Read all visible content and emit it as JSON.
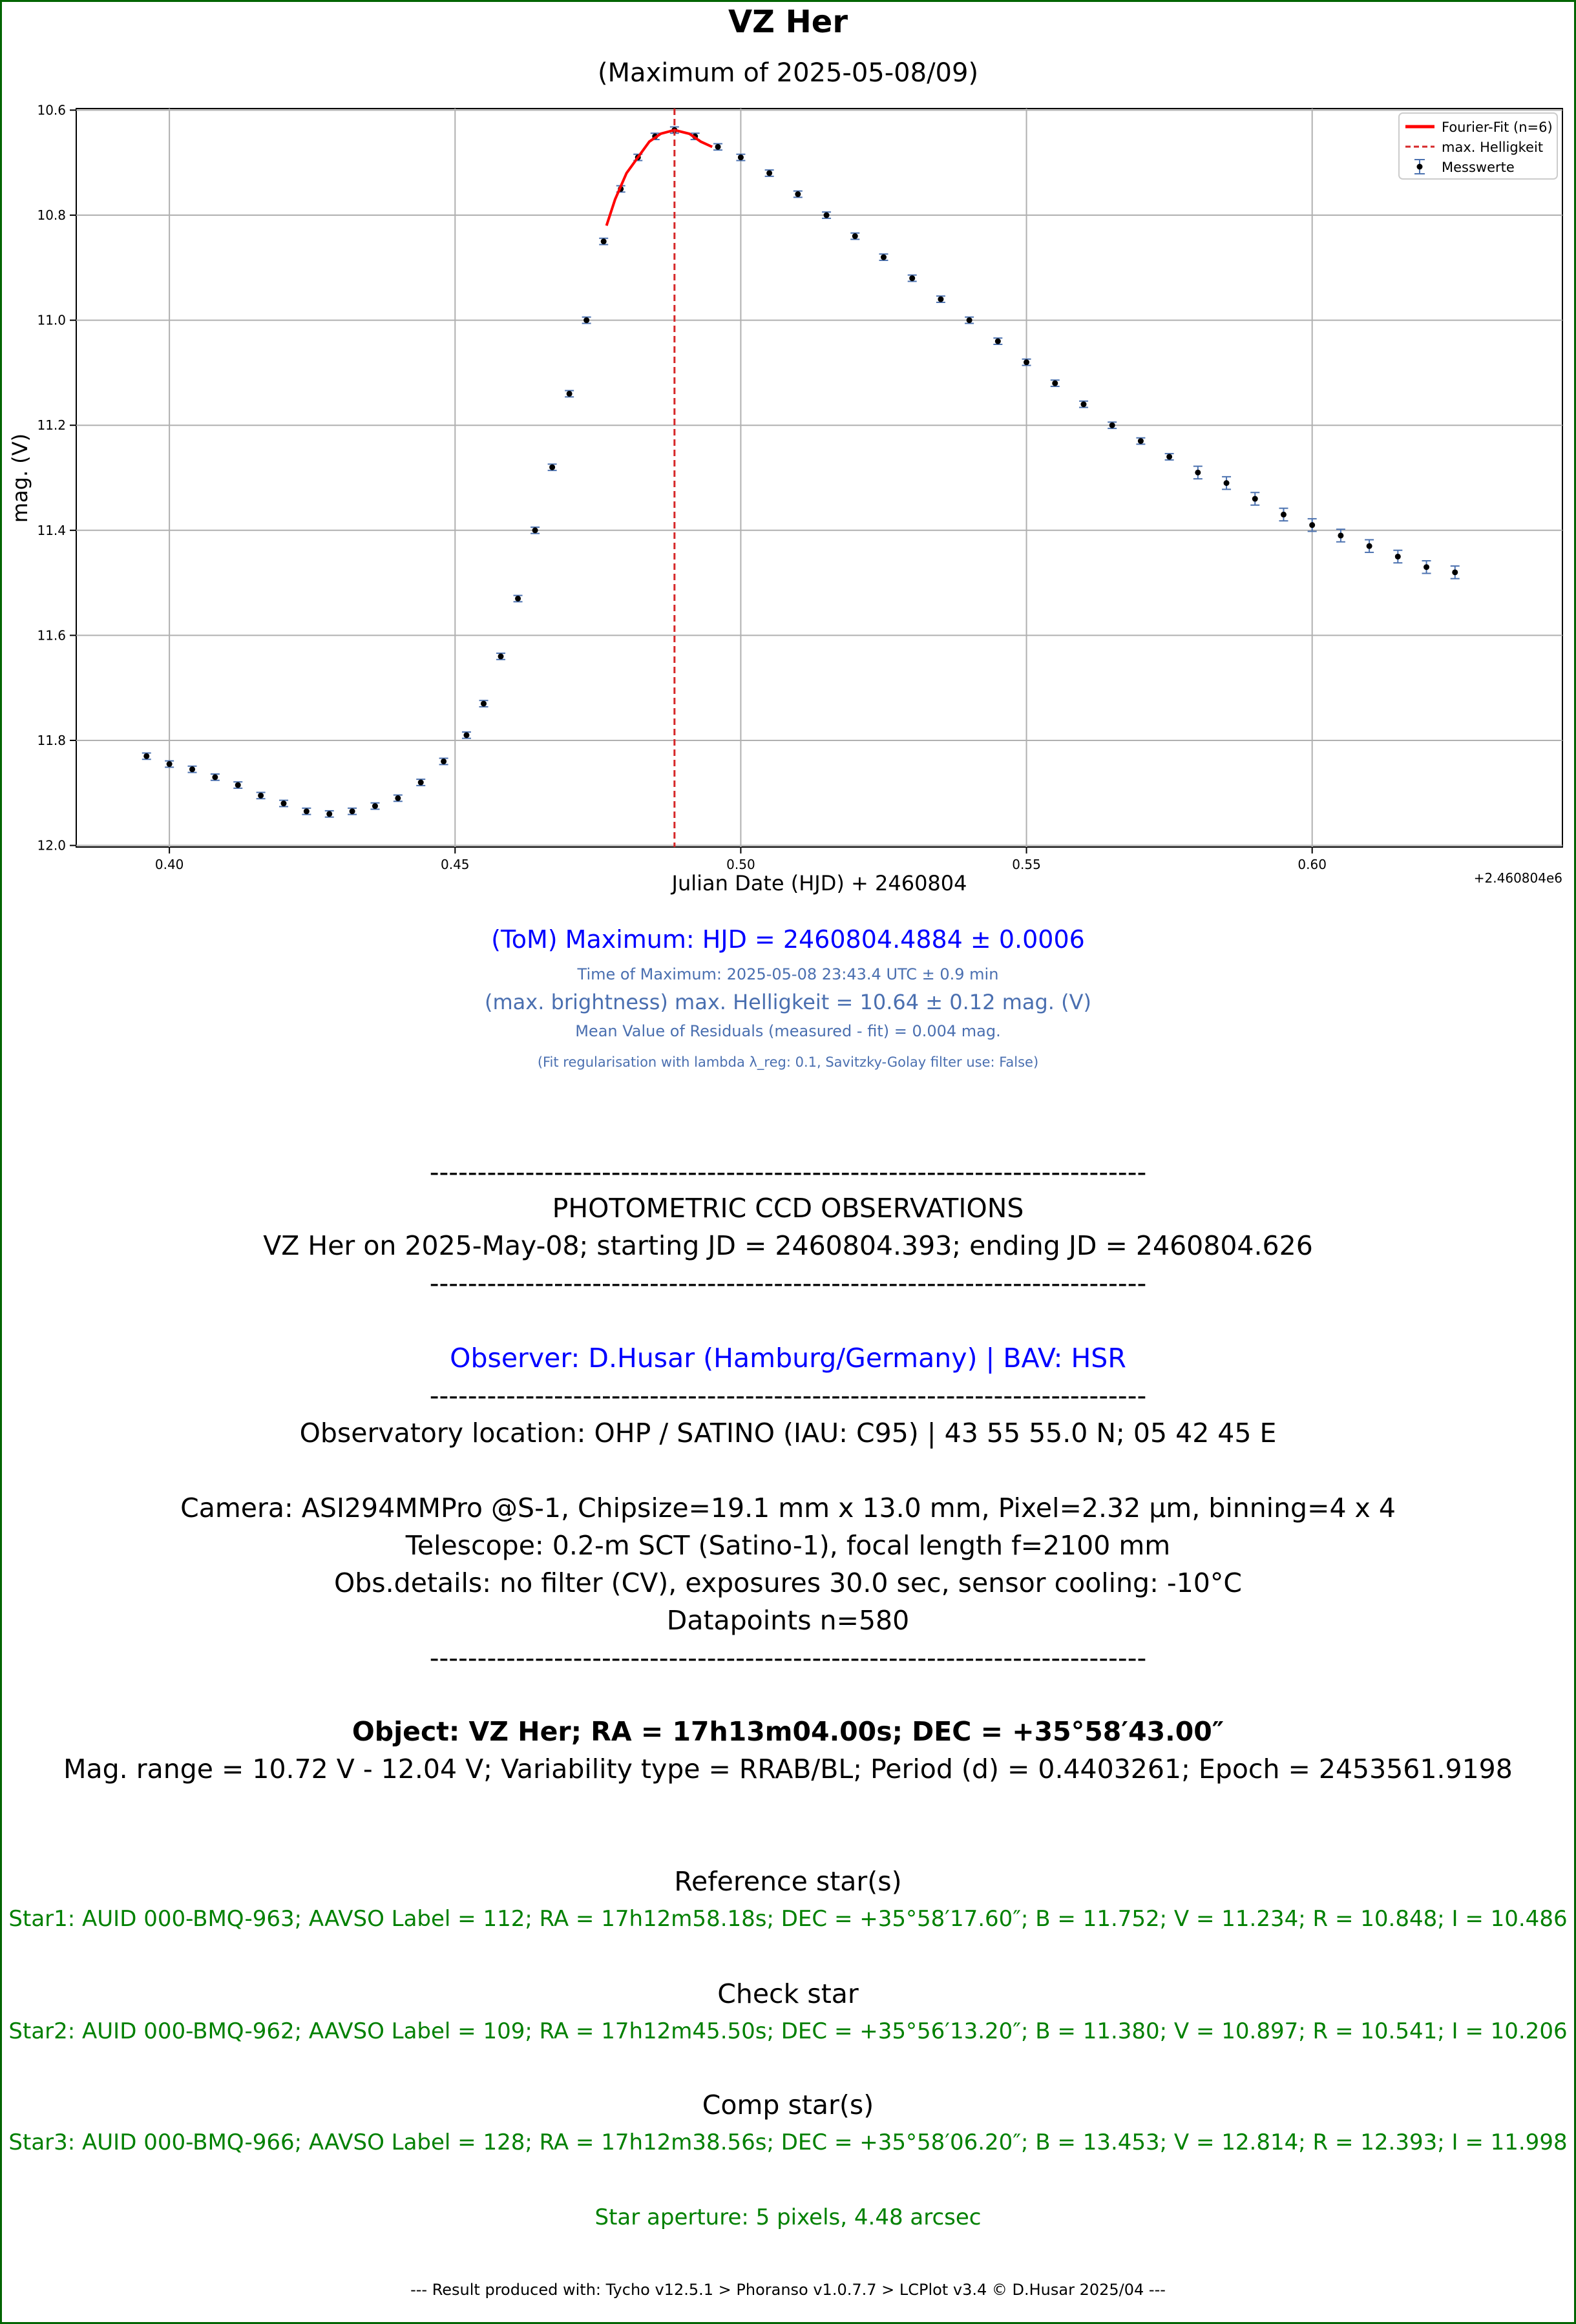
{
  "header": {
    "title": "VZ Her",
    "subtitle": "(Maximum of 2025-05-08/09)"
  },
  "chart_data": {
    "type": "scatter",
    "xlabel": "Julian Date (HJD) + 2460804",
    "ylabel": "mag. (V)",
    "offset_text": "+2.460804e6",
    "xlim": [
      0.3837,
      0.6438
    ],
    "ylim": [
      12.003,
      10.597
    ],
    "x_ticks": [
      "0.40",
      "0.45",
      "0.50",
      "0.55",
      "0.60"
    ],
    "y_ticks": [
      "10.6",
      "10.8",
      "11.0",
      "11.2",
      "11.4",
      "11.6",
      "11.8",
      "12.0"
    ],
    "grid": true,
    "legend_position": "top-right",
    "legend": [
      "Fourier-Fit (n=6)",
      "max. Helligkeit",
      "Messwerte"
    ],
    "colors": {
      "fit": "#ff0000",
      "max_line": "#d62728",
      "points": "#000000",
      "errorbars": "#4c72b0"
    },
    "max_hjd": 0.4884,
    "fit_anchors": [
      [
        0.4765,
        10.82
      ],
      [
        0.478,
        10.77
      ],
      [
        0.48,
        10.72
      ],
      [
        0.482,
        10.69
      ],
      [
        0.484,
        10.66
      ],
      [
        0.486,
        10.645
      ],
      [
        0.4884,
        10.638
      ],
      [
        0.491,
        10.645
      ],
      [
        0.493,
        10.66
      ],
      [
        0.495,
        10.67
      ]
    ],
    "series": [
      {
        "name": "Messwerte",
        "points": [
          [
            0.396,
            11.83
          ],
          [
            0.4,
            11.845
          ],
          [
            0.404,
            11.855
          ],
          [
            0.408,
            11.87
          ],
          [
            0.412,
            11.885
          ],
          [
            0.416,
            11.905
          ],
          [
            0.42,
            11.92
          ],
          [
            0.424,
            11.935
          ],
          [
            0.428,
            11.94
          ],
          [
            0.432,
            11.935
          ],
          [
            0.436,
            11.925
          ],
          [
            0.44,
            11.91
          ],
          [
            0.444,
            11.88
          ],
          [
            0.448,
            11.84
          ],
          [
            0.452,
            11.79
          ],
          [
            0.455,
            11.73
          ],
          [
            0.458,
            11.64
          ],
          [
            0.461,
            11.53
          ],
          [
            0.464,
            11.4
          ],
          [
            0.467,
            11.28
          ],
          [
            0.47,
            11.14
          ],
          [
            0.473,
            11.0
          ],
          [
            0.476,
            10.85
          ],
          [
            0.479,
            10.75
          ],
          [
            0.482,
            10.69
          ],
          [
            0.485,
            10.65
          ],
          [
            0.4884,
            10.638
          ],
          [
            0.492,
            10.65
          ],
          [
            0.496,
            10.67
          ],
          [
            0.5,
            10.69
          ],
          [
            0.505,
            10.72
          ],
          [
            0.51,
            10.76
          ],
          [
            0.515,
            10.8
          ],
          [
            0.52,
            10.84
          ],
          [
            0.525,
            10.88
          ],
          [
            0.53,
            10.92
          ],
          [
            0.535,
            10.96
          ],
          [
            0.54,
            11.0
          ],
          [
            0.545,
            11.04
          ],
          [
            0.55,
            11.08
          ],
          [
            0.555,
            11.12
          ],
          [
            0.56,
            11.16
          ],
          [
            0.565,
            11.2
          ],
          [
            0.57,
            11.23
          ],
          [
            0.575,
            11.26
          ],
          [
            0.58,
            11.29
          ],
          [
            0.585,
            11.31
          ],
          [
            0.59,
            11.34
          ],
          [
            0.595,
            11.37
          ],
          [
            0.6,
            11.39
          ],
          [
            0.605,
            11.41
          ],
          [
            0.61,
            11.43
          ],
          [
            0.615,
            11.45
          ],
          [
            0.62,
            11.47
          ],
          [
            0.625,
            11.48
          ]
        ]
      }
    ]
  },
  "results": {
    "tom": "(ToM) Maximum: HJD = 2460804.4884 ± 0.0006",
    "time_of_max": "Time of Maximum:   2025-05-08   23:43.4 UTC ± 0.9 min",
    "max_brightness": "(max. brightness) max. Helligkeit = 10.64 ± 0.12 mag. (V)",
    "residuals": "Mean Value of Residuals (measured - fit) = 0.004 mag.",
    "fit_note": "(Fit regularisation with lambda λ_reg: 0.1, Savitzky-Golay filter use: False)"
  },
  "report": {
    "dashes": "---------------------------------------------------------------------------",
    "heading": "PHOTOMETRIC CCD OBSERVATIONS",
    "run": "VZ Her on 2025-May-08; starting JD = 2460804.393; ending JD = 2460804.626",
    "observer": "Observer: D.Husar (Hamburg/Germany) | BAV: HSR",
    "location": "Observatory location: OHP / SATINO (IAU: C95) | 43 55 55.0 N; 05 42 45 E",
    "camera": "Camera: ASI294MMPro @S-1, Chipsize=19.1 mm x 13.0 mm, Pixel=2.32 µm, binning=4 x 4",
    "telescope": "Telescope: 0.2-m SCT (Satino-1), focal length f=2100 mm",
    "obs_details": "Obs.details: no filter (CV), exposures 30.0 sec, sensor cooling: -10°C",
    "datapoints": "Datapoints n=580",
    "object": "Object: VZ Her; RA = 17h13m04.00s; DEC = +35°58′43.00″",
    "mag_range": "Mag. range = 10.72 V - 12.04 V; Variability type = RRAB/BL; Period (d) = 0.4403261; Epoch = 2453561.9198",
    "ref_heading": "Reference star(s)",
    "ref_star": "Star1: AUID 000-BMQ-963; AAVSO Label = 112; RA = 17h12m58.18s; DEC = +35°58′17.60″; B = 11.752; V = 11.234; R = 10.848; I = 10.486",
    "check_heading": "Check star",
    "check_star": "Star2: AUID 000-BMQ-962; AAVSO Label = 109; RA = 17h12m45.50s; DEC = +35°56′13.20″; B = 11.380; V = 10.897; R = 10.541; I = 10.206",
    "comp_heading": "Comp star(s)",
    "comp_star": "Star3: AUID 000-BMQ-966; AAVSO Label = 128; RA = 17h12m38.56s; DEC = +35°58′06.20″; B = 13.453; V = 12.814; R = 12.393; I = 11.998",
    "aperture": "Star aperture: 5 pixels, 4.48 arcsec",
    "footer": "---  Result produced with: Tycho v12.5.1 > Phoranso v1.0.7.7 > LCPlot v3.4 © D.Husar 2025/04  ---"
  }
}
